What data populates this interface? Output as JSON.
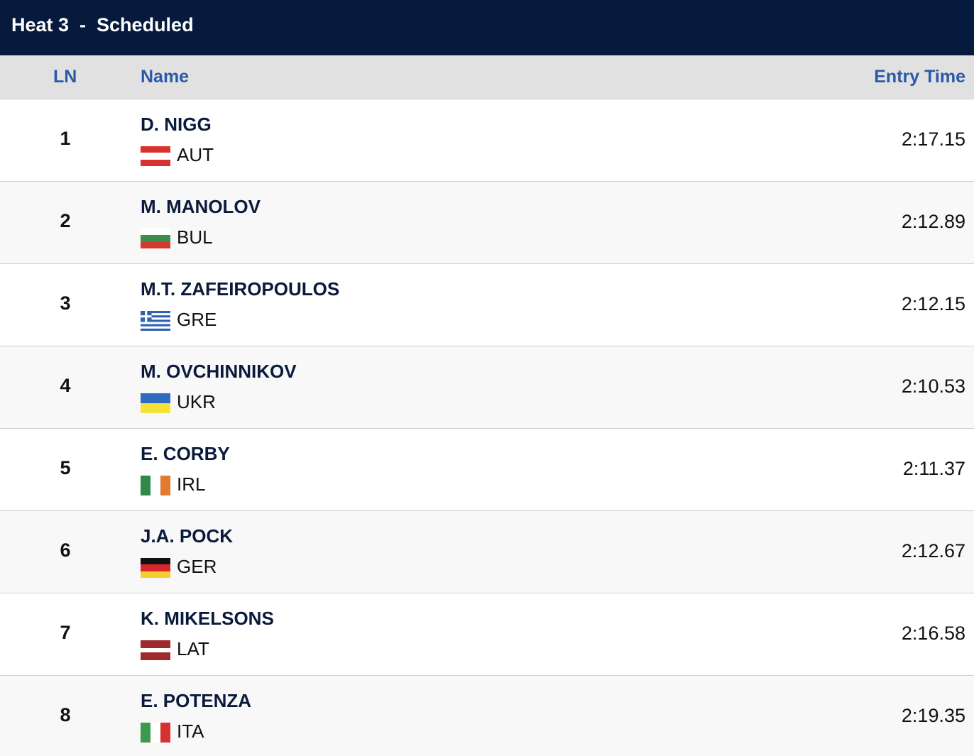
{
  "header": {
    "title": "Heat 3  -  Scheduled"
  },
  "table": {
    "columns": [
      "LN",
      "Name",
      "Entry Time"
    ],
    "rows": [
      {
        "lane": 1,
        "name": "D. NIGG",
        "country": "AUT",
        "time": "2:17.15"
      },
      {
        "lane": 2,
        "name": "M. MANOLOV",
        "country": "BUL",
        "time": "2:12.89"
      },
      {
        "lane": 3,
        "name": "M.T. ZAFEIROPOULOS",
        "country": "GRE",
        "time": "2:12.15"
      },
      {
        "lane": 4,
        "name": "M. OVCHINNIKOV",
        "country": "UKR",
        "time": "2:10.53"
      },
      {
        "lane": 5,
        "name": "E. CORBY",
        "country": "IRL",
        "time": "2:11.37"
      },
      {
        "lane": 6,
        "name": "J.A. POCK",
        "country": "GER",
        "time": "2:12.67"
      },
      {
        "lane": 7,
        "name": "K. MIKELSONS",
        "country": "LAT",
        "time": "2:16.58"
      },
      {
        "lane": 8,
        "name": "E. POTENZA",
        "country": "ITA",
        "time": "2:19.35"
      }
    ]
  }
}
